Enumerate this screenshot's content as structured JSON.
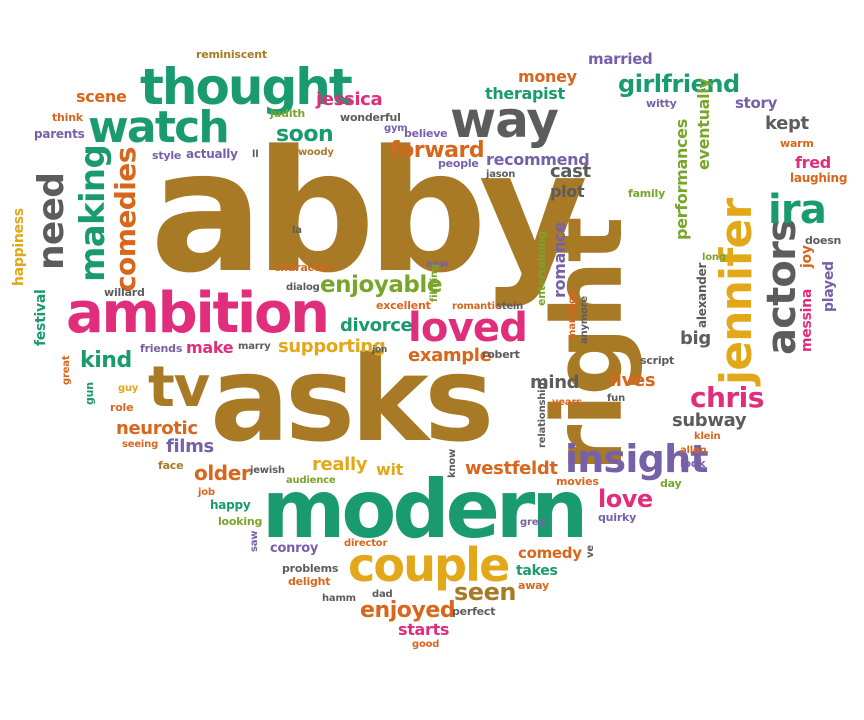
{
  "words": {
    "abby": "abby",
    "asks": "asks",
    "right": "right",
    "modern": "modern",
    "ambition": "ambition",
    "thought": "thought",
    "watch": "watch",
    "way": "way",
    "jennifer": "jennifer",
    "couple": "couple",
    "loved": "loved",
    "tv": "tv",
    "insight": "insight",
    "need": "need",
    "making": "making",
    "comedies": "comedies",
    "actors": "actors",
    "ira": "ira",
    "girlfriend": "girlfriend",
    "jessica": "jessica",
    "chris": "chris",
    "enjoyable": "enjoyable",
    "seen": "seen",
    "enjoyed": "enjoyed",
    "love": "love",
    "soon": "soon",
    "forward": "forward",
    "divorce": "divorce",
    "kind": "kind",
    "make": "make",
    "supporting": "supporting",
    "example": "example",
    "really": "really",
    "wit": "wit",
    "westfeldt": "westfeldt",
    "older": "older",
    "films": "films",
    "neurotic": "neurotic",
    "subway": "subway",
    "lives": "lives",
    "mind": "mind",
    "big": "big",
    "cast": "cast",
    "plot": "plot",
    "recommend": "recommend",
    "romance": "romance",
    "performances": "performances",
    "eventually": "eventually",
    "kept": "kept",
    "fred": "fred",
    "laughing": "laughing",
    "story": "story",
    "married": "married",
    "money": "money",
    "therapist": "therapist",
    "scene": "scene",
    "reminiscent": "reminiscent",
    "think": "think",
    "parents": "parents",
    "style": "style",
    "actually": "actually",
    "judith": "judith",
    "wonderful": "wonderful",
    "gym": "gym",
    "believe": "believe",
    "woody": "woody",
    "ll": "ll",
    "people": "people",
    "jason": "jason",
    "witty": "witty",
    "warm": "warm",
    "family": "family",
    "doesn": "doesn",
    "played": "played",
    "joy": "joy",
    "messina": "messina",
    "long": "long",
    "alexander": "alexander",
    "script": "script",
    "fun": "fun",
    "klein": "klein",
    "allen": "allen",
    "look": "look",
    "day": "day",
    "quirky": "quirky",
    "happiness": "happiness",
    "festival": "festival",
    "willard": "willard",
    "dialog": "dialog",
    "character": "character",
    "la": "la",
    "new": "new",
    "filming": "filming",
    "excellent": "excellent",
    "entertaining": "entertaining",
    "romantic": "romantic",
    "stein": "stein",
    "marriage": "marriage",
    "anymore": "anymore",
    "friends": "friends",
    "marry": "marry",
    "jon": "jon",
    "robert": "robert",
    "great": "great",
    "gun": "gun",
    "guy": "guy",
    "role": "role",
    "seeing": "seeing",
    "face": "face",
    "jewish": "jewish",
    "relationship": "relationship",
    "years": "years",
    "know": "know",
    "movies": "movies",
    "job": "job",
    "happy": "happy",
    "audience": "audience",
    "looking": "looking",
    "saw": "saw",
    "conroy": "conroy",
    "director": "director",
    "problems": "problems",
    "delight": "delight",
    "hamm": "hamm",
    "dad": "dad",
    "greg": "greg",
    "comedy": "comedy",
    "takes": "takes",
    "away": "away",
    "ve": "ve",
    "perfect": "perfect",
    "starts": "starts",
    "good": "good"
  }
}
